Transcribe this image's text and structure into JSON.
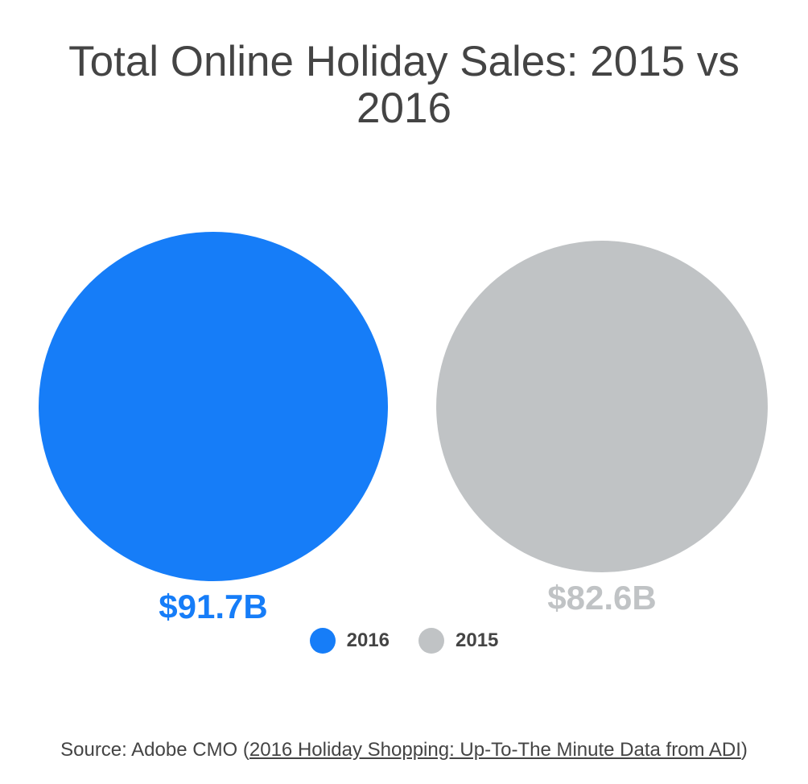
{
  "chart_data": {
    "type": "bubble",
    "title": "Total Online Holiday Sales: 2015 vs 2016",
    "series": [
      {
        "name": "2016",
        "value": 91.7,
        "label": "$91.7B",
        "color": "#167df8"
      },
      {
        "name": "2015",
        "value": 82.6,
        "label": "$82.6B",
        "color": "#c0c3c5"
      }
    ],
    "legend_position": "bottom-center"
  },
  "source": {
    "prefix": "Source: Adobe CMO (",
    "link_text": "2016 Holiday Shopping: Up-To-The Minute Data from ADI",
    "suffix": ")"
  },
  "colors": {
    "text": "#444444"
  }
}
